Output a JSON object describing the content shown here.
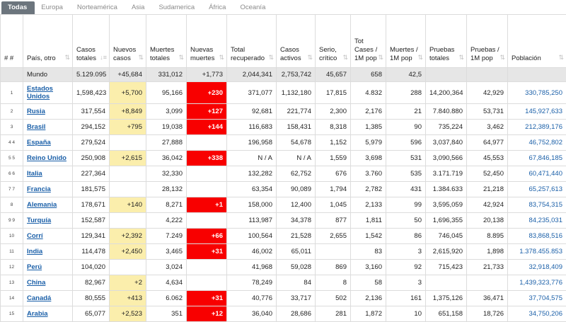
{
  "tabs": [
    "Todas",
    "Europa",
    "Norteamérica",
    "Asia",
    "Sudamerica",
    "África",
    "Oceanía"
  ],
  "headers": {
    "rank": "# #",
    "country": "País, otro",
    "total_cases": "Casos totales",
    "new_cases": "Nuevos casos",
    "total_deaths": "Muertes totales",
    "new_deaths": "Nuevas muertes",
    "recovered": "Total recuperado",
    "active": "Casos activos",
    "critical": "Serio, crítico",
    "cases_pop": "Tot Cases / 1M pop",
    "deaths_pop": "Muertes / 1M pop",
    "tests": "Pruebas totales",
    "tests_pop": "Pruebas / 1M pop",
    "population": "Población"
  },
  "world": {
    "country": "Mundo",
    "total_cases": "5.129.095",
    "new_cases": "+45,684",
    "total_deaths": "331,012",
    "new_deaths": "+1,773",
    "recovered": "2,044,341",
    "active": "2,753,742",
    "critical": "45,657",
    "cases_pop": "658",
    "deaths_pop": "42,5",
    "tests": "",
    "tests_pop": "",
    "population": ""
  },
  "rows": [
    {
      "rank": "1",
      "country": "Estados Unidos",
      "total_cases": "1,598,423",
      "new_cases": "+5,700",
      "total_deaths": "95,166",
      "new_deaths": "+230",
      "recovered": "371,077",
      "active": "1,132,180",
      "critical": "17,815",
      "cases_pop": "4.832",
      "deaths_pop": "288",
      "tests": "14,200,364",
      "tests_pop": "42,929",
      "population": "330,785,250"
    },
    {
      "rank": "2",
      "country": "Rusia",
      "total_cases": "317,554",
      "new_cases": "+8,849",
      "total_deaths": "3,099",
      "new_deaths": "+127",
      "recovered": "92,681",
      "active": "221,774",
      "critical": "2,300",
      "cases_pop": "2,176",
      "deaths_pop": "21",
      "tests": "7.840.880",
      "tests_pop": "53,731",
      "population": "145,927,633"
    },
    {
      "rank": "3",
      "country": "Brasil",
      "total_cases": "294,152",
      "new_cases": "+795",
      "total_deaths": "19,038",
      "new_deaths": "+144",
      "recovered": "116,683",
      "active": "158,431",
      "critical": "8,318",
      "cases_pop": "1,385",
      "deaths_pop": "90",
      "tests": "735,224",
      "tests_pop": "3,462",
      "population": "212,389,176"
    },
    {
      "rank": "4 4",
      "country": "España",
      "total_cases": "279,524",
      "new_cases": "",
      "total_deaths": "27,888",
      "new_deaths": "",
      "recovered": "196,958",
      "active": "54,678",
      "critical": "1,152",
      "cases_pop": "5,979",
      "deaths_pop": "596",
      "tests": "3,037,840",
      "tests_pop": "64,977",
      "population": "46,752,802"
    },
    {
      "rank": "5 5",
      "country": "Reino Unido",
      "total_cases": "250,908",
      "new_cases": "+2,615",
      "total_deaths": "36,042",
      "new_deaths": "+338",
      "recovered": "N / A",
      "active": "N / A",
      "critical": "1,559",
      "cases_pop": "3,698",
      "deaths_pop": "531",
      "tests": "3,090,566",
      "tests_pop": "45,553",
      "population": "67,846,185"
    },
    {
      "rank": "6 6",
      "country": "Italia",
      "total_cases": "227,364",
      "new_cases": "",
      "total_deaths": "32,330",
      "new_deaths": "",
      "recovered": "132,282",
      "active": "62,752",
      "critical": "676",
      "cases_pop": "3.760",
      "deaths_pop": "535",
      "tests": "3.171.719",
      "tests_pop": "52,450",
      "population": "60,471,440"
    },
    {
      "rank": "7 7",
      "country": "Francia",
      "total_cases": "181,575",
      "new_cases": "",
      "total_deaths": "28,132",
      "new_deaths": "",
      "recovered": "63,354",
      "active": "90,089",
      "critical": "1,794",
      "cases_pop": "2,782",
      "deaths_pop": "431",
      "tests": "1.384.633",
      "tests_pop": "21,218",
      "population": "65,257,613"
    },
    {
      "rank": "8",
      "country": "Alemania",
      "total_cases": "178,671",
      "new_cases": "+140",
      "total_deaths": "8,271",
      "new_deaths": "+1",
      "recovered": "158,000",
      "active": "12,400",
      "critical": "1,045",
      "cases_pop": "2,133",
      "deaths_pop": "99",
      "tests": "3,595,059",
      "tests_pop": "42,924",
      "population": "83,754,315"
    },
    {
      "rank": "9 9",
      "country": "Turquía",
      "total_cases": "152,587",
      "new_cases": "",
      "total_deaths": "4,222",
      "new_deaths": "",
      "recovered": "113,987",
      "active": "34,378",
      "critical": "877",
      "cases_pop": "1,811",
      "deaths_pop": "50",
      "tests": "1,696,355",
      "tests_pop": "20,138",
      "population": "84,235,031"
    },
    {
      "rank": "10",
      "country": "Corrí",
      "total_cases": "129,341",
      "new_cases": "+2,392",
      "total_deaths": "7.249",
      "new_deaths": "+66",
      "recovered": "100,564",
      "active": "21,528",
      "critical": "2,655",
      "cases_pop": "1,542",
      "deaths_pop": "86",
      "tests": "746,045",
      "tests_pop": "8.895",
      "population": "83,868,516"
    },
    {
      "rank": "11",
      "country": "India",
      "total_cases": "114,478",
      "new_cases": "+2,450",
      "total_deaths": "3,465",
      "new_deaths": "+31",
      "recovered": "46,002",
      "active": "65,011",
      "critical": "",
      "cases_pop": "83",
      "deaths_pop": "3",
      "tests": "2,615,920",
      "tests_pop": "1,898",
      "population": "1.378.455.853"
    },
    {
      "rank": "12",
      "country": "Perú",
      "total_cases": "104,020",
      "new_cases": "",
      "total_deaths": "3,024",
      "new_deaths": "",
      "recovered": "41,968",
      "active": "59,028",
      "critical": "869",
      "cases_pop": "3,160",
      "deaths_pop": "92",
      "tests": "715,423",
      "tests_pop": "21,733",
      "population": "32,918,409"
    },
    {
      "rank": "13",
      "country": "China",
      "total_cases": "82,967",
      "new_cases": "+2",
      "total_deaths": "4,634",
      "new_deaths": "",
      "recovered": "78,249",
      "active": "84",
      "critical": "8",
      "cases_pop": "58",
      "deaths_pop": "3",
      "tests": "",
      "tests_pop": "",
      "population": "1,439,323,776"
    },
    {
      "rank": "14",
      "country": "Canadá",
      "total_cases": "80,555",
      "new_cases": "+413",
      "total_deaths": "6.062",
      "new_deaths": "+31",
      "recovered": "40,776",
      "active": "33,717",
      "critical": "502",
      "cases_pop": "2,136",
      "deaths_pop": "161",
      "tests": "1,375,126",
      "tests_pop": "36,471",
      "population": "37,704,575"
    },
    {
      "rank": "15",
      "country": "Arabia",
      "total_cases": "65,077",
      "new_cases": "+2,523",
      "total_deaths": "351",
      "new_deaths": "+12",
      "recovered": "36,040",
      "active": "28,686",
      "critical": "281",
      "cases_pop": "1,872",
      "deaths_pop": "10",
      "tests": "651,158",
      "tests_pop": "18,726",
      "population": "34,750,206"
    }
  ],
  "colors": {
    "new_cases_highlight": "#fbeeac",
    "new_deaths_highlight": "#f80000",
    "link": "#1a5fa8",
    "world_row": "#e6e6e6"
  }
}
